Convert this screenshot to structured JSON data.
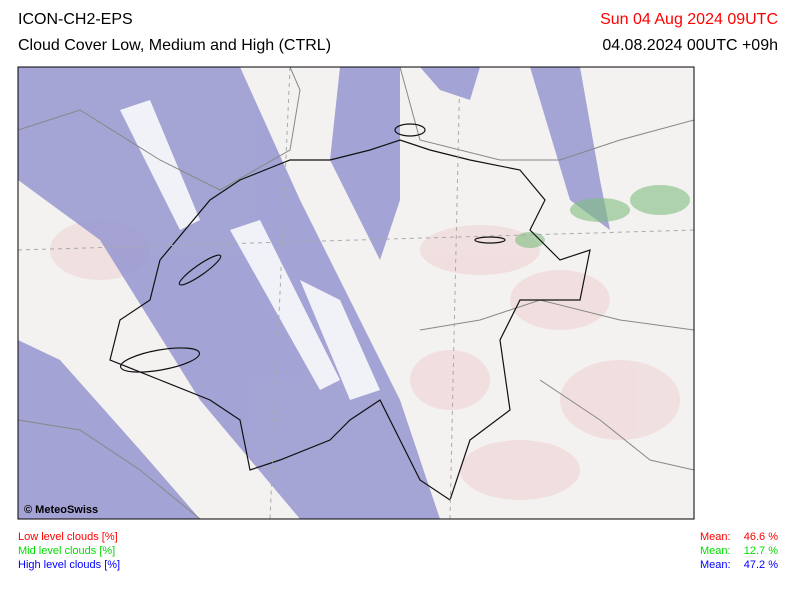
{
  "header": {
    "model": "ICON-CH2-EPS",
    "title": "Cloud Cover Low, Medium and High (CTRL)",
    "valid_time": "Sun 04 Aug 2024 09UTC",
    "run": "04.08.2024 00UTC +09h"
  },
  "map": {
    "credit": "© MeteoSwiss"
  },
  "legend": [
    {
      "label": "Low level clouds [%]",
      "mean_label": "Mean:",
      "mean": "46.6 %",
      "color": "#ff0000"
    },
    {
      "label": "Mid level clouds [%]",
      "mean_label": "Mean:",
      "mean": "12.7 %",
      "color": "#00dd00"
    },
    {
      "label": "High level clouds [%]",
      "mean_label": "Mean:",
      "mean": "47.2 %",
      "color": "#0000ff"
    }
  ]
}
